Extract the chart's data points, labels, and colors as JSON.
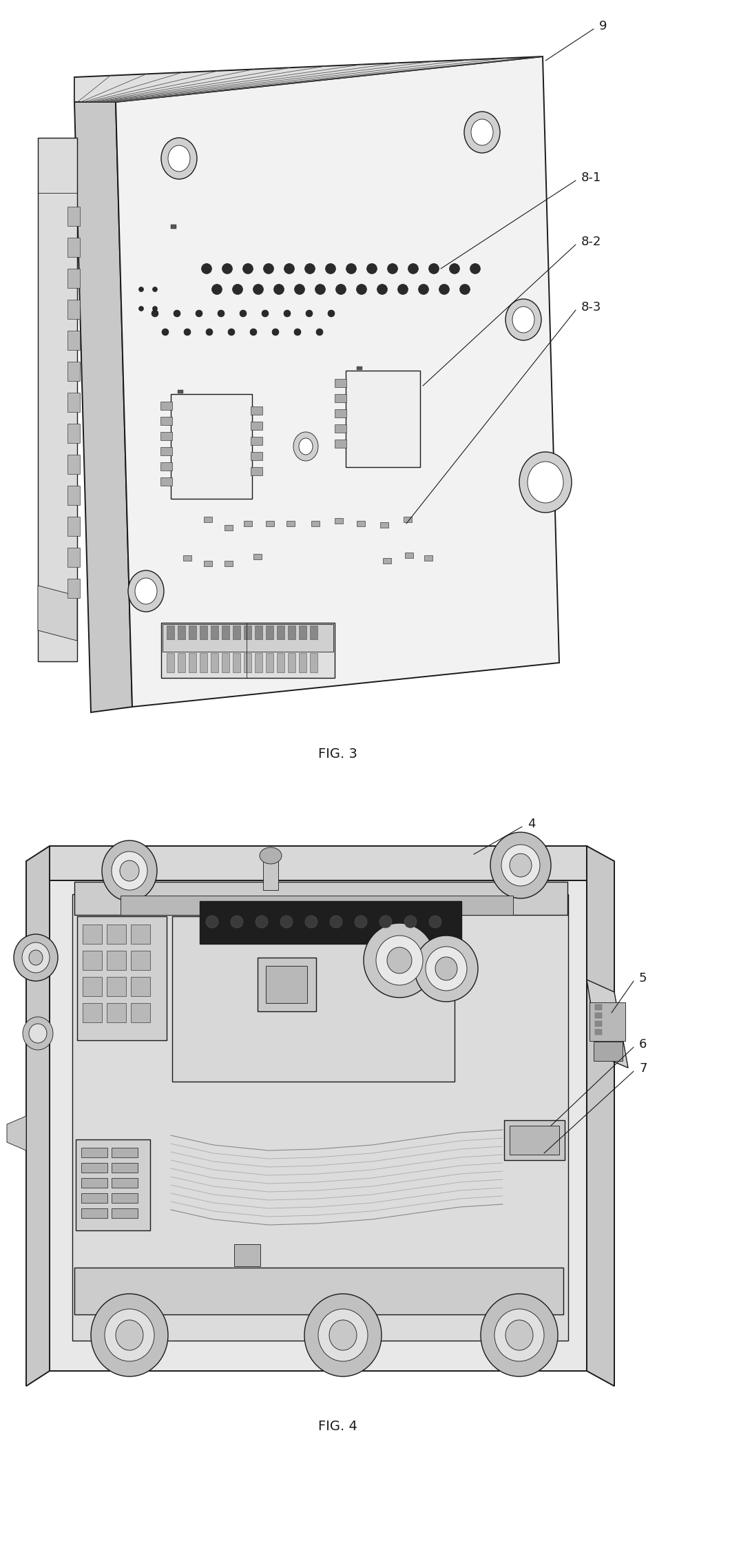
{
  "fig_width": 10.6,
  "fig_height": 22.47,
  "dpi": 100,
  "background_color": "#ffffff",
  "lc": "#1a1a1a",
  "lc_med": "#555555",
  "lc_light": "#888888",
  "fc_white": "#ffffff",
  "fc_light": "#f0f0f0",
  "fc_mid": "#d8d8d8",
  "fc_dark": "#b0b0b0",
  "fc_vdark": "#888888",
  "fc_black": "#222222",
  "lw": 1.0,
  "lw_thin": 0.6,
  "lw_thick": 1.4,
  "font_size": 13,
  "fig3_label": "FIG. 3",
  "fig4_label": "FIG. 4",
  "label_9": "9",
  "label_81": "8-1",
  "label_82": "8-2",
  "label_83": "8-3",
  "label_4": "4",
  "label_5": "5",
  "label_6": "6",
  "label_7": "7"
}
